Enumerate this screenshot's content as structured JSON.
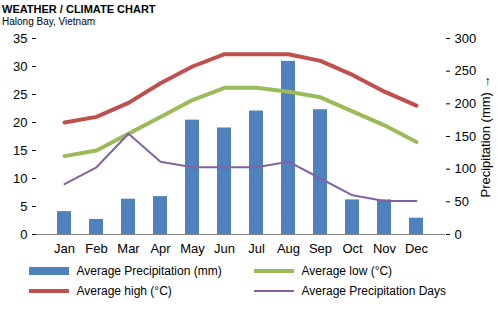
{
  "chart_data": {
    "type": "bar",
    "title": "WEATHER / CLIMATE CHART",
    "subtitle": "Halong Bay, Vietnam",
    "categories": [
      "Jan",
      "Feb",
      "Mar",
      "Apr",
      "May",
      "Jun",
      "Jul",
      "Aug",
      "Sep",
      "Oct",
      "Nov",
      "Dec"
    ],
    "series": [
      {
        "name": "Average Precipitation (mm)",
        "type": "bar",
        "axis": "y2",
        "color": "#4f81bd",
        "values": [
          35,
          23,
          54,
          58,
          175,
          163,
          189,
          265,
          191,
          53,
          53,
          25
        ]
      },
      {
        "name": "Average low (°C)",
        "type": "line",
        "color": "#9bbb59",
        "line_style": "thick",
        "values": [
          14,
          15,
          18,
          21,
          24,
          26.2,
          26.2,
          25.5,
          24.5,
          22,
          19.5,
          16.5
        ]
      },
      {
        "name": "Average high (°C)",
        "type": "line",
        "color": "#c0504d",
        "line_style": "thick",
        "values": [
          20,
          21,
          23.5,
          27,
          30,
          32.2,
          32.2,
          32.2,
          31,
          28.5,
          25.5,
          23
        ]
      },
      {
        "name": "Average Precipitation Days",
        "type": "line",
        "color": "#8064a2",
        "line_style": "solid",
        "values": [
          9,
          12,
          18,
          13,
          12,
          12,
          12,
          13,
          10,
          7,
          6,
          6
        ]
      }
    ],
    "ylim": [
      0,
      35
    ],
    "yticks": [
      0,
      5,
      10,
      15,
      20,
      25,
      30,
      35
    ],
    "y2lim": [
      0,
      300
    ],
    "y2ticks": [
      0,
      50,
      100,
      150,
      200,
      250,
      300
    ],
    "y2label": "Precipitation (mm)",
    "legend": "bottom",
    "grid": false
  }
}
